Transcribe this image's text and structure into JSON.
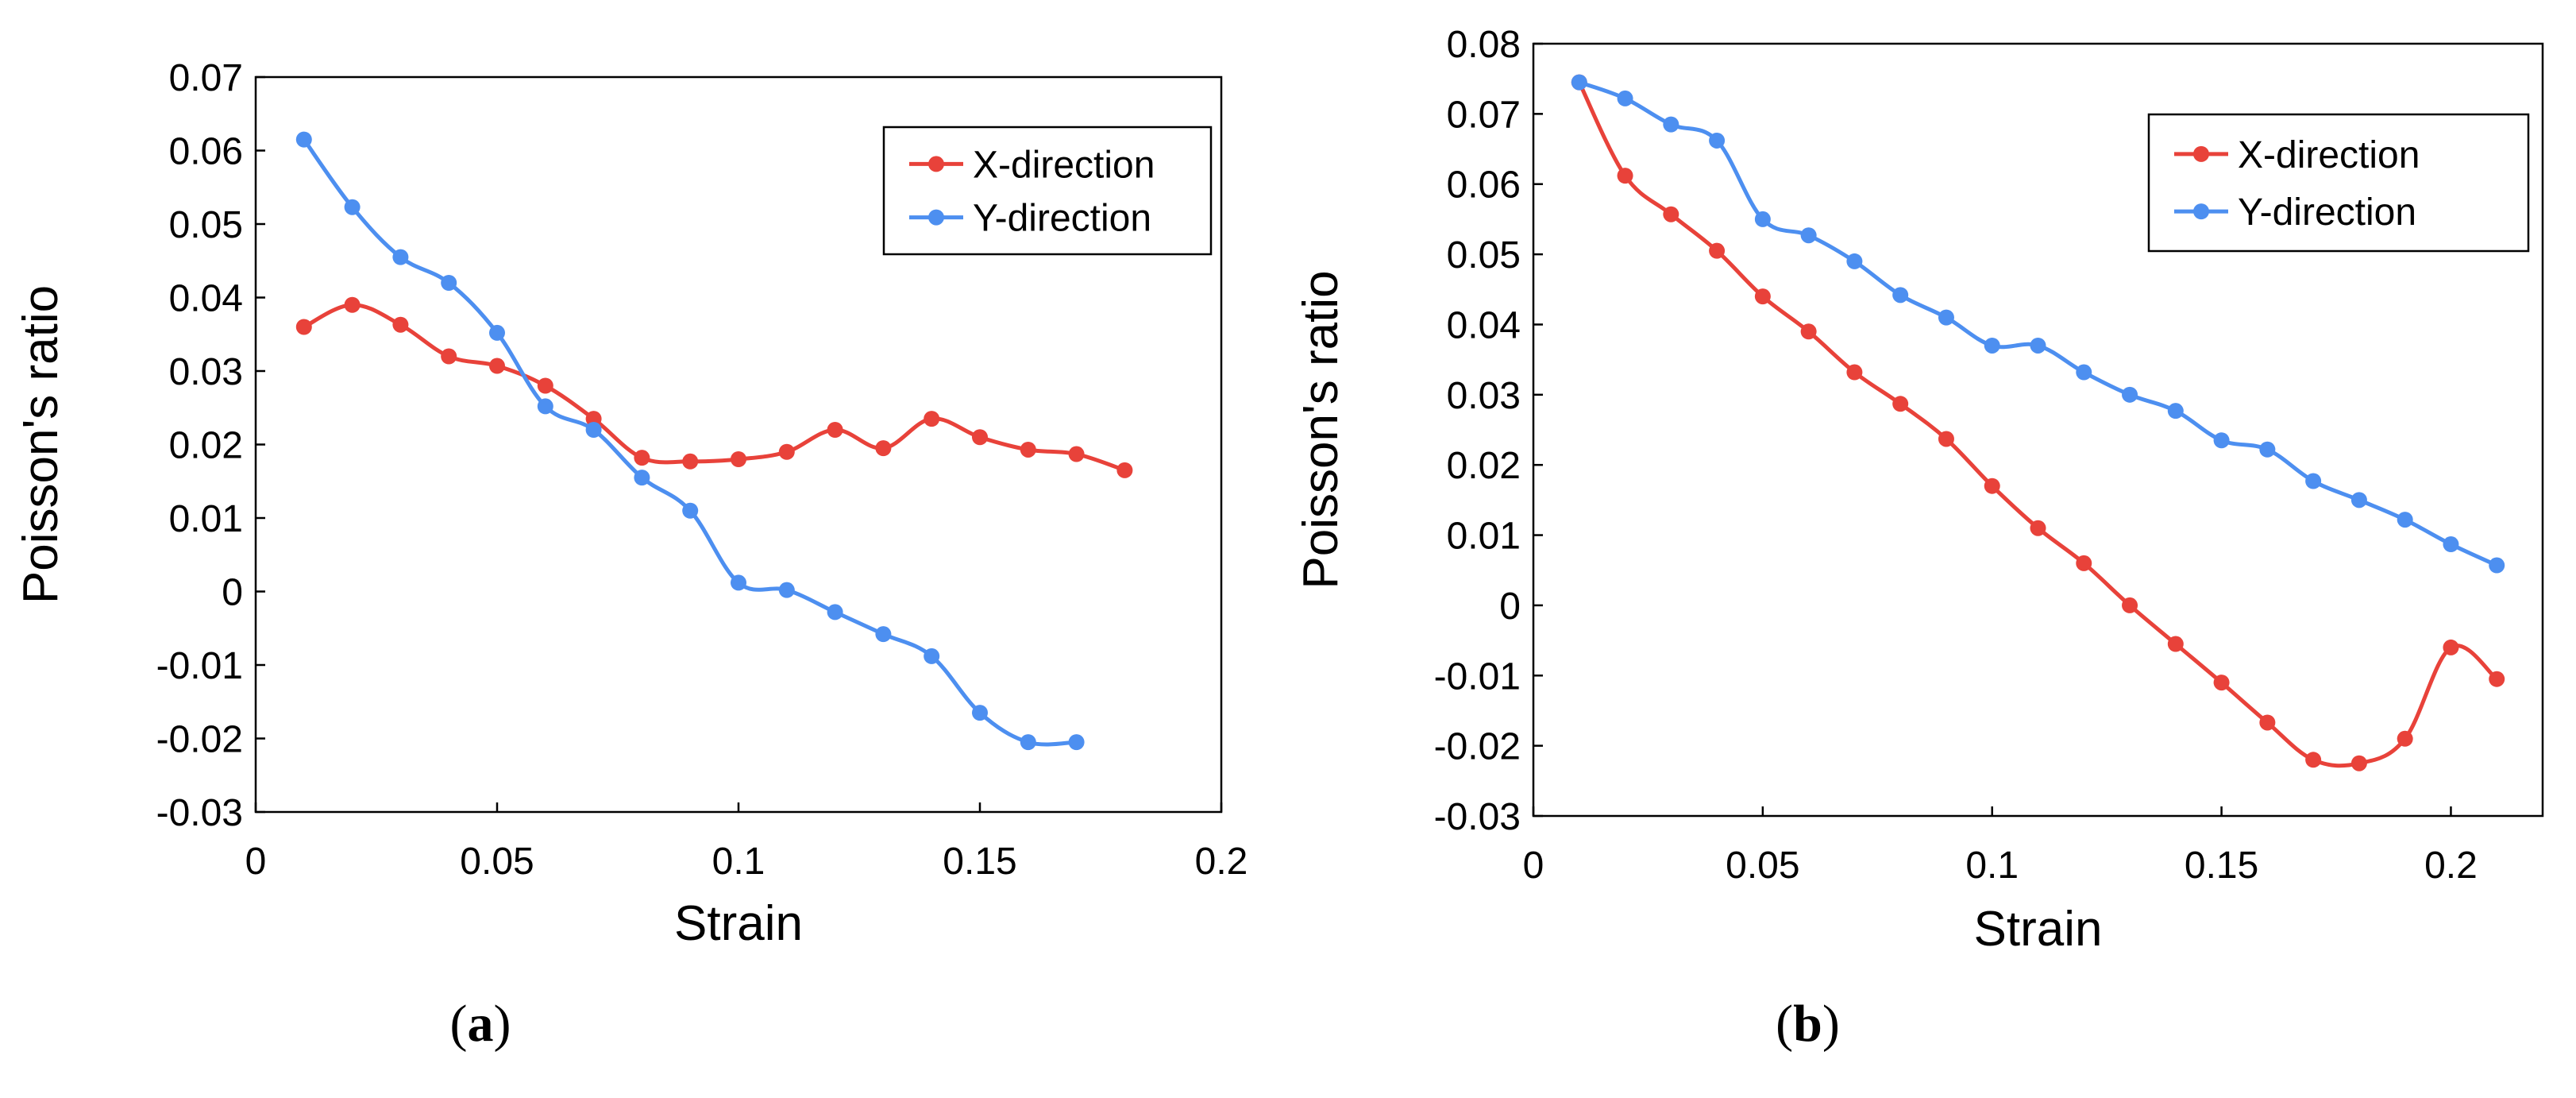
{
  "chart_data": [
    {
      "type": "line",
      "caption_letter": "a",
      "xlabel": "Strain",
      "ylabel": "Poisson's ratio",
      "xlim": [
        0,
        0.2
      ],
      "ylim": [
        -0.03,
        0.07
      ],
      "x_ticks": [
        0,
        0.05,
        0.1,
        0.15,
        0.2
      ],
      "x_tick_labels": [
        "0",
        "0.05",
        "0.1",
        "0.15",
        "0.2"
      ],
      "y_ticks": [
        -0.03,
        -0.02,
        -0.01,
        0,
        0.01,
        0.02,
        0.03,
        0.04,
        0.05,
        0.06,
        0.07
      ],
      "y_tick_labels": [
        "-0.03",
        "-0.02",
        "-0.01",
        "0",
        "0.01",
        "0.02",
        "0.03",
        "0.04",
        "0.05",
        "0.06",
        "0.07"
      ],
      "grid": false,
      "legend_position": "top-right",
      "series": [
        {
          "name": "X-direction",
          "color": "#e8423a",
          "x": [
            0.01,
            0.02,
            0.03,
            0.04,
            0.05,
            0.06,
            0.07,
            0.08,
            0.09,
            0.1,
            0.11,
            0.12,
            0.13,
            0.14,
            0.15,
            0.16,
            0.17,
            0.18
          ],
          "values": [
            0.036,
            0.039,
            0.0363,
            0.032,
            0.0307,
            0.028,
            0.0235,
            0.0182,
            0.0177,
            0.018,
            0.019,
            0.022,
            0.0195,
            0.0235,
            0.021,
            0.0193,
            0.0187,
            0.0165
          ]
        },
        {
          "name": "Y-direction",
          "color": "#4d8ff0",
          "x": [
            0.01,
            0.02,
            0.03,
            0.04,
            0.05,
            0.06,
            0.07,
            0.08,
            0.09,
            0.1,
            0.11,
            0.12,
            0.13,
            0.14,
            0.15,
            0.16,
            0.17
          ],
          "values": [
            0.0615,
            0.0523,
            0.0455,
            0.042,
            0.0352,
            0.0252,
            0.022,
            0.0155,
            0.011,
            0.0012,
            0.0002,
            -0.0028,
            -0.0058,
            -0.0088,
            -0.0165,
            -0.0205,
            -0.0205
          ]
        }
      ]
    },
    {
      "type": "line",
      "caption_letter": "b",
      "xlabel": "Strain",
      "ylabel": "Poisson's ratio",
      "xlim": [
        0,
        0.22
      ],
      "ylim": [
        -0.03,
        0.08
      ],
      "x_ticks": [
        0,
        0.05,
        0.1,
        0.15,
        0.2
      ],
      "x_tick_labels": [
        "0",
        "0.05",
        "0.1",
        "0.15",
        "0.2"
      ],
      "y_ticks": [
        -0.03,
        -0.02,
        -0.01,
        0,
        0.01,
        0.02,
        0.03,
        0.04,
        0.05,
        0.06,
        0.07,
        0.08
      ],
      "y_tick_labels": [
        "-0.03",
        "-0.02",
        "-0.01",
        "0",
        "0.01",
        "0.02",
        "0.03",
        "0.04",
        "0.05",
        "0.06",
        "0.07",
        "0.08"
      ],
      "grid": false,
      "legend_position": "top-right",
      "series": [
        {
          "name": "X-direction",
          "color": "#e8423a",
          "x": [
            0.01,
            0.02,
            0.03,
            0.04,
            0.05,
            0.06,
            0.07,
            0.08,
            0.09,
            0.1,
            0.11,
            0.12,
            0.13,
            0.14,
            0.15,
            0.16,
            0.17,
            0.18,
            0.19,
            0.2,
            0.21
          ],
          "values": [
            0.0745,
            0.0612,
            0.0557,
            0.0505,
            0.044,
            0.039,
            0.0332,
            0.0287,
            0.0237,
            0.017,
            0.011,
            0.006,
            0.0,
            -0.0055,
            -0.011,
            -0.0167,
            -0.022,
            -0.0225,
            -0.019,
            -0.006,
            -0.0105
          ]
        },
        {
          "name": "Y-direction",
          "color": "#4d8ff0",
          "x": [
            0.01,
            0.02,
            0.03,
            0.04,
            0.05,
            0.06,
            0.07,
            0.08,
            0.09,
            0.1,
            0.11,
            0.12,
            0.13,
            0.14,
            0.15,
            0.16,
            0.17,
            0.18,
            0.19,
            0.2,
            0.21
          ],
          "values": [
            0.0745,
            0.0722,
            0.0685,
            0.0662,
            0.055,
            0.0527,
            0.049,
            0.0442,
            0.041,
            0.037,
            0.037,
            0.0332,
            0.03,
            0.0277,
            0.0235,
            0.0222,
            0.0177,
            0.015,
            0.0122,
            0.0087,
            0.0057
          ]
        }
      ]
    }
  ]
}
